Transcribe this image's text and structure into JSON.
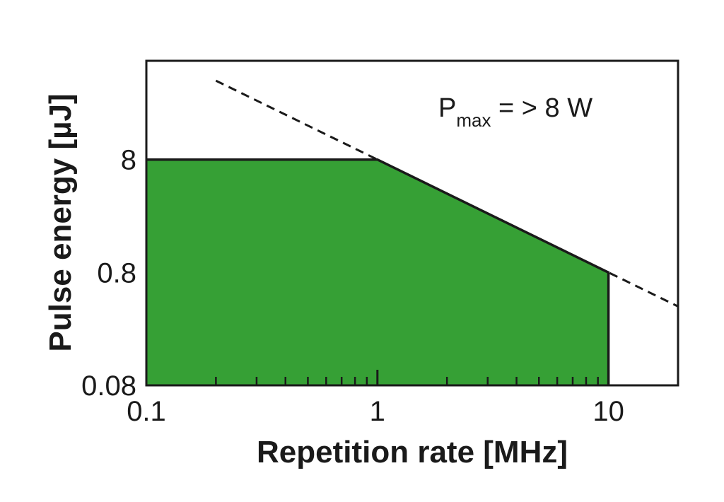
{
  "chart_data": {
    "type": "area",
    "title": "",
    "xlabel": "Repetition rate [MHz]",
    "ylabel": "Pulse energy [µJ]",
    "x_scale": "log",
    "y_scale": "log",
    "xlim": [
      0.1,
      20
    ],
    "ylim": [
      0.08,
      60
    ],
    "x_ticks": [
      0.1,
      1,
      10
    ],
    "x_tick_labels": [
      "0.1",
      "1",
      "10"
    ],
    "y_ticks": [
      0.08,
      0.8,
      8
    ],
    "y_tick_labels": [
      "0.08",
      "0.8",
      "8"
    ],
    "grid": false,
    "series": [
      {
        "style": "filled-area",
        "color": "#36a035",
        "x": [
          0.1,
          1,
          10,
          10
        ],
        "y": [
          8,
          8,
          0.8,
          0.08
        ]
      },
      {
        "style": "dashed",
        "color": "#1a1a1a",
        "x": [
          0.2,
          20
        ],
        "y": [
          40,
          0.4
        ]
      }
    ],
    "annotation": {
      "main": "P",
      "subscript": "max",
      "rest": " = > 8 W"
    }
  }
}
